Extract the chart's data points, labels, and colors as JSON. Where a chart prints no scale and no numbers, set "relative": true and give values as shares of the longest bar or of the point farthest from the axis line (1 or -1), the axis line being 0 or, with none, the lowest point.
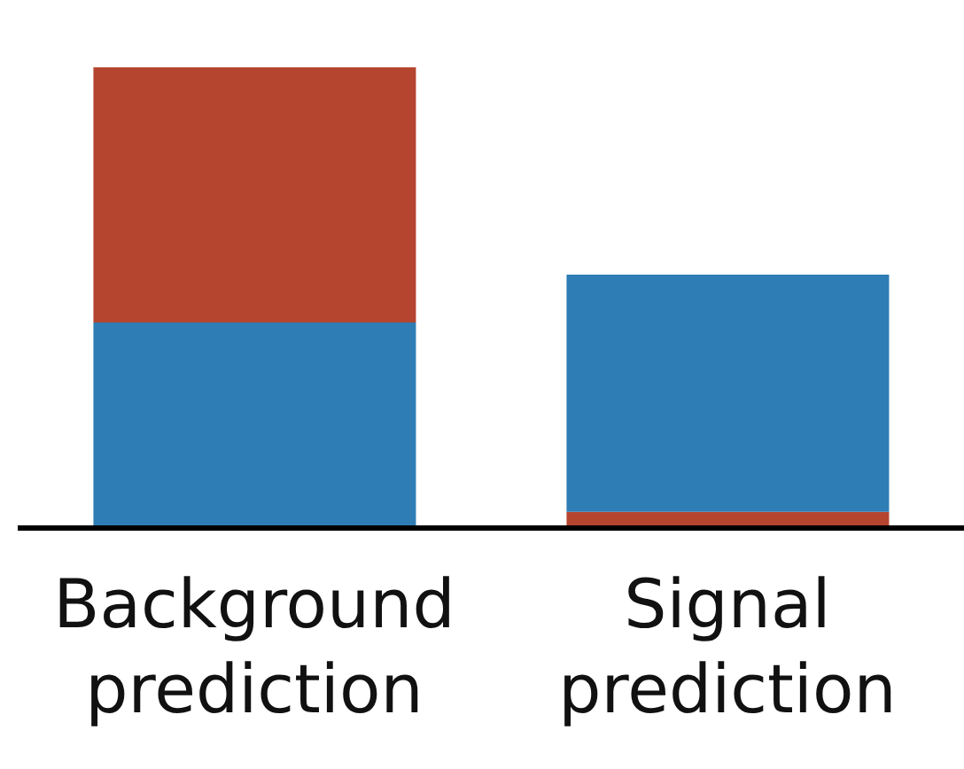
{
  "chart_data": {
    "type": "bar",
    "relative": true,
    "stacked": true,
    "categories": [
      "Background prediction",
      "Signal prediction"
    ],
    "series": [
      {
        "color": "#b5452f",
        "values": [
          null,
          0.035
        ]
      },
      {
        "color": "#2e7db5",
        "values": [
          0.446,
          0.515
        ]
      },
      {
        "color": "#b5452f",
        "values": [
          0.554,
          null
        ]
      }
    ]
  }
}
